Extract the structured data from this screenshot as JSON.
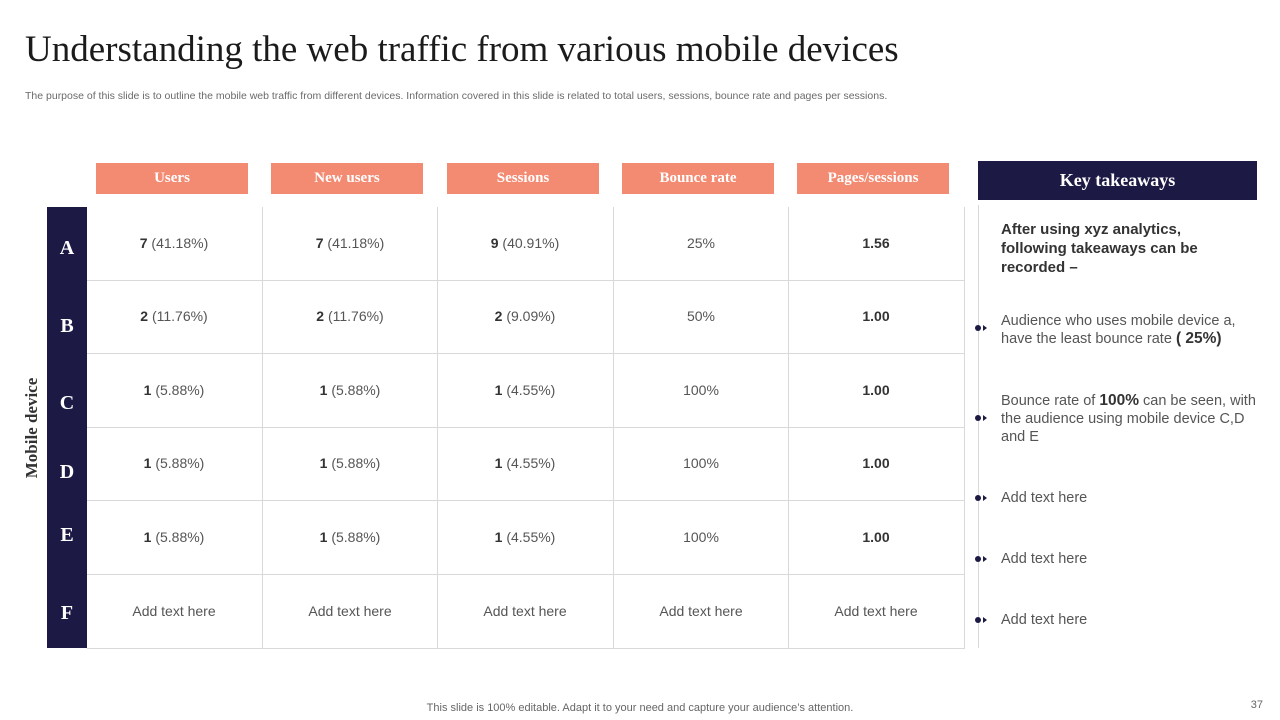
{
  "title": "Understanding the web traffic from various mobile devices",
  "subtitle": "The purpose of this slide is to outline the mobile web traffic from different devices. Information covered in this slide is related to total users, sessions, bounce rate and pages per sessions.",
  "table": {
    "columns": [
      "Users",
      "New users",
      "Sessions",
      "Bounce rate",
      "Pages/sessions"
    ],
    "row_axis_label": "Mobile device",
    "rows": [
      {
        "label": "A",
        "cells": [
          {
            "main": "7",
            "extra": " (41.18%)"
          },
          {
            "main": "7",
            "extra": " (41.18%)"
          },
          {
            "main": "9",
            "extra": " (40.91%)"
          },
          {
            "main": "",
            "extra": "25%"
          },
          {
            "main": "1.56",
            "extra": ""
          }
        ]
      },
      {
        "label": "B",
        "cells": [
          {
            "main": "2",
            "extra": " (11.76%)"
          },
          {
            "main": "2",
            "extra": " (11.76%)"
          },
          {
            "main": "2",
            "extra": " (9.09%)"
          },
          {
            "main": "",
            "extra": "50%"
          },
          {
            "main": "1.00",
            "extra": ""
          }
        ]
      },
      {
        "label": "C",
        "cells": [
          {
            "main": "1",
            "extra": " (5.88%)"
          },
          {
            "main": "1",
            "extra": " (5.88%)"
          },
          {
            "main": "1",
            "extra": " (4.55%)"
          },
          {
            "main": "",
            "extra": "100%"
          },
          {
            "main": "1.00",
            "extra": ""
          }
        ]
      },
      {
        "label": "D",
        "cells": [
          {
            "main": "1",
            "extra": " (5.88%)"
          },
          {
            "main": "1",
            "extra": " (5.88%)"
          },
          {
            "main": "1",
            "extra": " (4.55%)"
          },
          {
            "main": "",
            "extra": "100%"
          },
          {
            "main": "1.00",
            "extra": ""
          }
        ]
      },
      {
        "label": "E",
        "cells": [
          {
            "main": "1",
            "extra": " (5.88%)"
          },
          {
            "main": "1",
            "extra": " (5.88%)"
          },
          {
            "main": "1",
            "extra": " (4.55%)"
          },
          {
            "main": "",
            "extra": "100%"
          },
          {
            "main": "1.00",
            "extra": ""
          }
        ]
      },
      {
        "label": "F",
        "cells": [
          {
            "main": "",
            "extra": "Add text here"
          },
          {
            "main": "",
            "extra": "Add text here"
          },
          {
            "main": "",
            "extra": "Add text here"
          },
          {
            "main": "",
            "extra": "Add text here"
          },
          {
            "main": "",
            "extra": "Add text here"
          }
        ]
      }
    ]
  },
  "takeaways": {
    "heading": "Key takeaways",
    "intro": "After using xyz analytics, following takeaways can be recorded –",
    "item1_pre": "Audience who uses mobile device a, have the least bounce rate ",
    "item1_bold": "( 25%)",
    "item2_pre": "Bounce rate of ",
    "item2_bold": "100%",
    "item2_post": " can be seen, with the audience using mobile device C,D and E",
    "item3": "Add text here",
    "item4": "Add text here",
    "item5": "Add text here"
  },
  "footer": "This slide is 100% editable. Adapt it to your need and capture your audience’s attention.",
  "page_number": "37"
}
